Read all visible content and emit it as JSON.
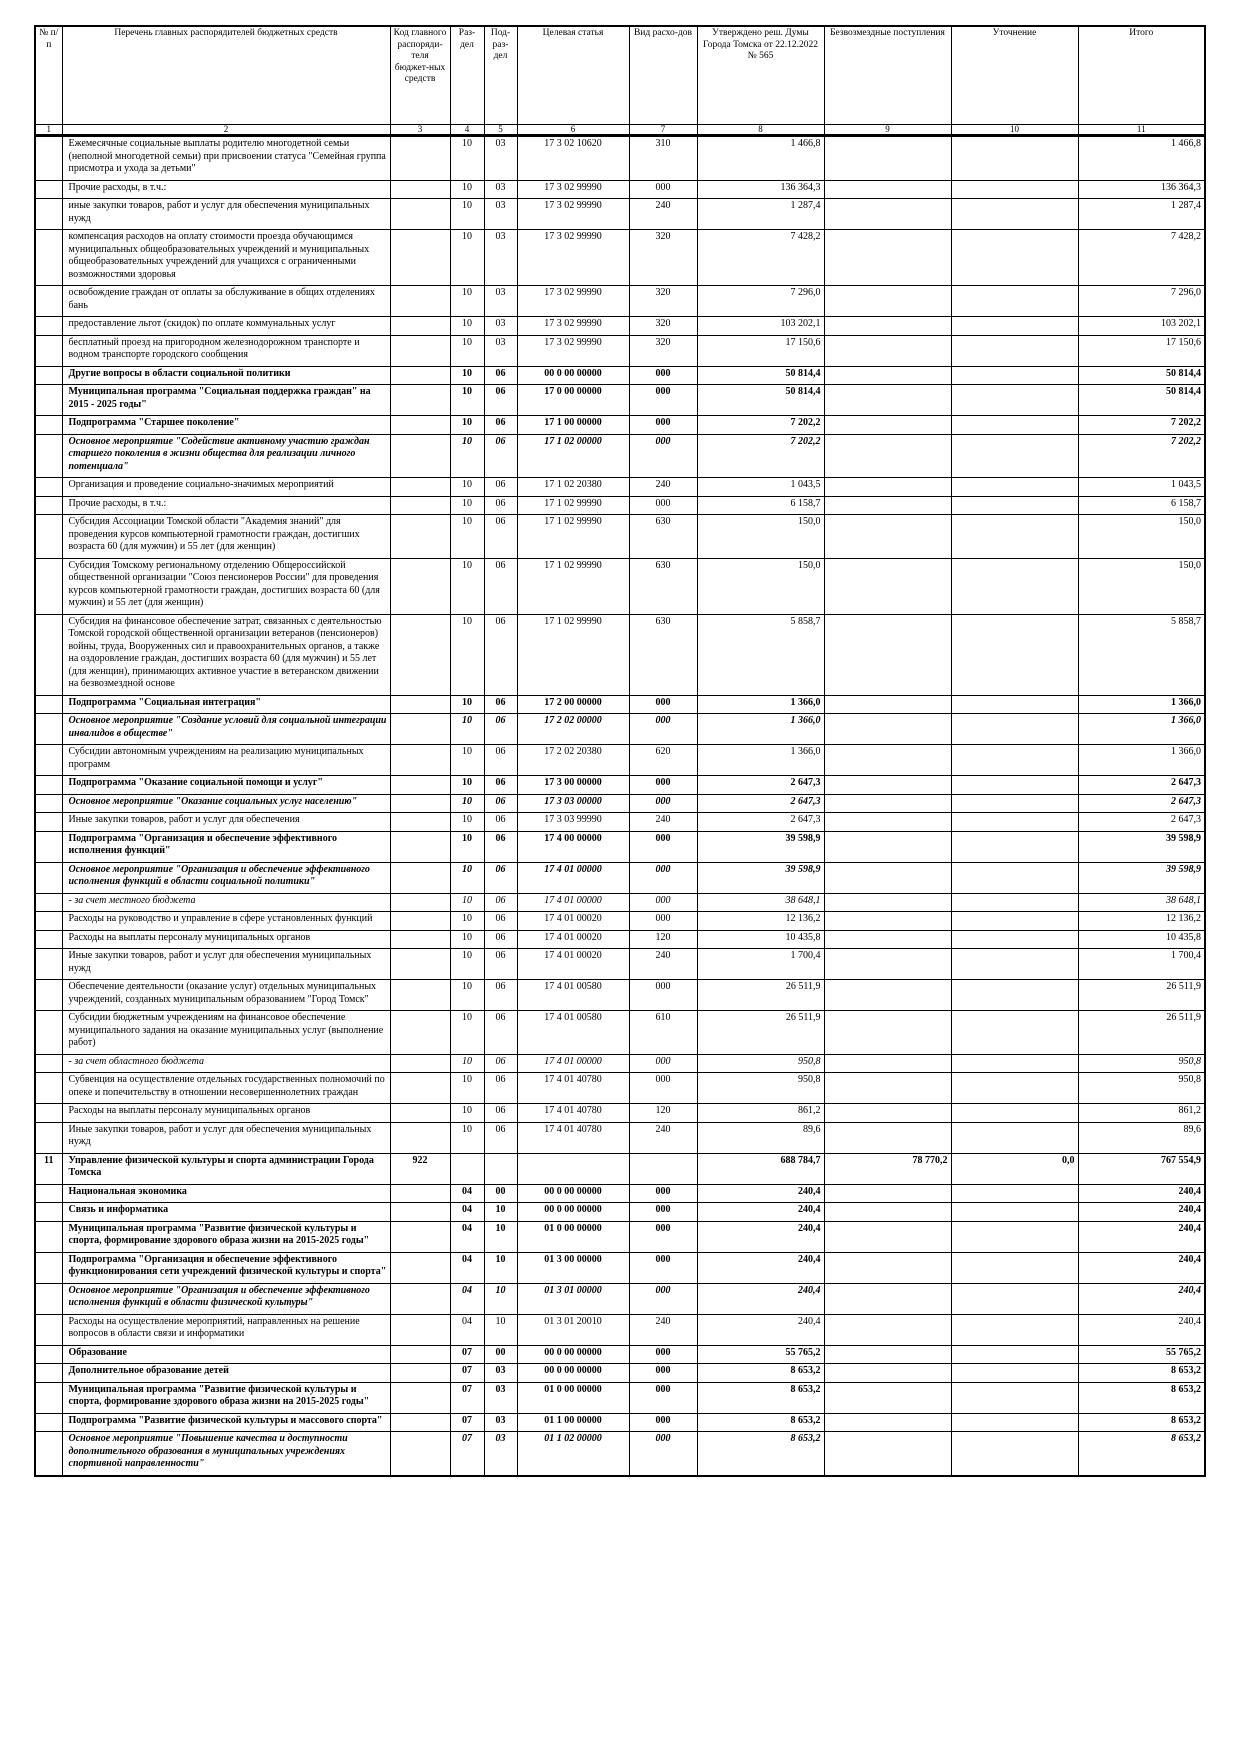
{
  "header": {
    "columns": [
      "№ п/п",
      "Перечень главных распорядителей бюджетных средств",
      "Код главного распоряди-теля бюджет-ных средств",
      "Раз-дел",
      "Под-раз-дел",
      "Целевая статья",
      "Вид расхо-дов",
      "Утверждено реш. Думы Города Томска от 22.12.2022 № 565",
      "Безвозмездные поступления",
      "Уточнение",
      "Итого"
    ],
    "numbers": [
      "1",
      "2",
      "3",
      "4",
      "5",
      "6",
      "7",
      "8",
      "9",
      "10",
      "11"
    ]
  },
  "rows": [
    {
      "kind": "normal",
      "cells": [
        null,
        "Ежемесячные социальные выплаты родителю многодетной семьи (неполной многодетной семьи) при присвоении статуса \"Семейная группа присмотра и ухода за детьми\"",
        null,
        "10",
        "03",
        "17 3 02 10620",
        "310",
        "1 466,8",
        null,
        null,
        "1 466,8"
      ]
    },
    {
      "kind": "normal",
      "cells": [
        null,
        "Прочие расходы, в т.ч.:",
        null,
        "10",
        "03",
        "17 3 02 99990",
        "000",
        "136 364,3",
        null,
        null,
        "136 364,3"
      ]
    },
    {
      "kind": "normal",
      "cells": [
        null,
        "иные закупки товаров, работ и услуг для обеспечения муниципальных нужд",
        null,
        "10",
        "03",
        "17 3 02 99990",
        "240",
        "1 287,4",
        null,
        null,
        "1 287,4"
      ]
    },
    {
      "kind": "normal",
      "cells": [
        null,
        "компенсация расходов на оплату стоимости проезда обучающимся муниципальных общеобразовательных учреждений и муниципальных общеобразовательных учреждений для учащихся с ограниченными возможностями здоровья",
        null,
        "10",
        "03",
        "17 3 02 99990",
        "320",
        "7 428,2",
        null,
        null,
        "7 428,2"
      ]
    },
    {
      "kind": "normal",
      "cells": [
        null,
        "освобождение граждан от оплаты за обслуживание в общих отделениях бань",
        null,
        "10",
        "03",
        "17 3 02 99990",
        "320",
        "7 296,0",
        null,
        null,
        "7 296,0"
      ]
    },
    {
      "kind": "normal",
      "cells": [
        null,
        "предоставление льгот (скидок) по оплате коммунальных услуг",
        null,
        "10",
        "03",
        "17 3 02 99990",
        "320",
        "103 202,1",
        null,
        null,
        "103 202,1"
      ]
    },
    {
      "kind": "normal",
      "cells": [
        null,
        "бесплатный проезд на пригородном железнодорожном транспорте и водном транспорте городского сообщения",
        null,
        "10",
        "03",
        "17 3 02 99990",
        "320",
        "17 150,6",
        null,
        null,
        "17 150,6"
      ]
    },
    {
      "kind": "section",
      "cells": [
        null,
        "Другие вопросы в области социальной политики",
        null,
        "10",
        "06",
        "00 0 00 00000",
        "000",
        "50 814,4",
        null,
        null,
        "50 814,4"
      ]
    },
    {
      "kind": "bold",
      "cells": [
        null,
        "Муниципальная программа \"Социальная поддержка граждан\" на 2015 - 2025 годы\"",
        null,
        "10",
        "06",
        "17 0 00 00000",
        "000",
        "50 814,4",
        null,
        null,
        "50 814,4"
      ]
    },
    {
      "kind": "bold",
      "cells": [
        null,
        "Подпрограмма \"Старшее поколение\"",
        null,
        "10",
        "06",
        "17 1 00 00000",
        "000",
        "7 202,2",
        null,
        null,
        "7 202,2"
      ]
    },
    {
      "kind": "bolditalic",
      "cells": [
        null,
        "Основное мероприятие \"Содействие активному участию граждан старшего поколения в жизни общества для реализации личного потенциала\"",
        null,
        "10",
        "06",
        "17 1 02 00000",
        "000",
        "7 202,2",
        null,
        null,
        "7 202,2"
      ]
    },
    {
      "kind": "normal",
      "cells": [
        null,
        "Организация и проведение социально-значимых мероприятий",
        null,
        "10",
        "06",
        "17 1 02 20380",
        "240",
        "1 043,5",
        null,
        null,
        "1 043,5"
      ]
    },
    {
      "kind": "normal",
      "cells": [
        null,
        "Прочие расходы, в т.ч.:",
        null,
        "10",
        "06",
        "17 1 02 99990",
        "000",
        "6 158,7",
        null,
        null,
        "6 158,7"
      ]
    },
    {
      "kind": "normal",
      "cells": [
        null,
        "Субсидия Ассоциации Томской области \"Академия знаний\" для проведения курсов компьютерной грамотности граждан, достигших возраста 60 (для мужчин) и 55 лет (для женщин)",
        null,
        "10",
        "06",
        "17 1 02 99990",
        "630",
        "150,0",
        null,
        null,
        "150,0"
      ]
    },
    {
      "kind": "normal",
      "cells": [
        null,
        "Субсидия Томскому региональному отделению Общероссийской общественной организации \"Союз пенсионеров России\" для проведения курсов компьютерной грамотности граждан, достигших возраста 60 (для мужчин) и 55 лет (для женщин)",
        null,
        "10",
        "06",
        "17 1 02 99990",
        "630",
        "150,0",
        null,
        null,
        "150,0"
      ]
    },
    {
      "kind": "normal",
      "cells": [
        null,
        "Субсидия на финансовое обеспечение затрат, связанных с деятельностью Томской городской общественной организации ветеранов (пенсионеров) войны, труда, Вооруженных сил и правоохранительных органов, а также на оздоровление граждан, достигших возраста 60 (для мужчин) и 55 лет (для женщин), принимающих активное участие в ветеранском движении на безвозмездной основе",
        null,
        "10",
        "06",
        "17 1 02 99990",
        "630",
        "5 858,7",
        null,
        null,
        "5 858,7"
      ]
    },
    {
      "kind": "bold",
      "cells": [
        null,
        "Подпрограмма \"Социальная интеграция\"",
        null,
        "10",
        "06",
        "17 2 00 00000",
        "000",
        "1 366,0",
        null,
        null,
        "1 366,0"
      ]
    },
    {
      "kind": "bolditalic",
      "cells": [
        null,
        "Основное мероприятие \"Создание условий для социальной интеграции инвалидов в обществе\"",
        null,
        "10",
        "06",
        "17 2 02 00000",
        "000",
        "1 366,0",
        null,
        null,
        "1 366,0"
      ]
    },
    {
      "kind": "normal",
      "cells": [
        null,
        "Субсидии автономным учреждениям на реализацию муниципальных программ",
        null,
        "10",
        "06",
        "17 2 02 20380",
        "620",
        "1 366,0",
        null,
        null,
        "1 366,0"
      ]
    },
    {
      "kind": "bold",
      "cells": [
        null,
        "Подпрограмма \"Оказание социальной помощи и услуг\"",
        null,
        "10",
        "06",
        "17 3 00 00000",
        "000",
        "2 647,3",
        null,
        null,
        "2 647,3"
      ]
    },
    {
      "kind": "bolditalic",
      "cells": [
        null,
        "Основное мероприятие \"Оказание социальных услуг населению\"",
        null,
        "10",
        "06",
        "17 3 03 00000",
        "000",
        "2 647,3",
        null,
        null,
        "2 647,3"
      ]
    },
    {
      "kind": "normal",
      "cells": [
        null,
        "Иные закупки товаров, работ и услуг для обеспечения",
        null,
        "10",
        "06",
        "17 3 03 99990",
        "240",
        "2 647,3",
        null,
        null,
        "2 647,3"
      ]
    },
    {
      "kind": "bold",
      "cells": [
        null,
        "Подпрограмма \"Организация и обеспечение эффективного исполнения функций\"",
        null,
        "10",
        "06",
        "17 4 00 00000",
        "000",
        "39 598,9",
        null,
        null,
        "39 598,9"
      ]
    },
    {
      "kind": "bolditalic",
      "cells": [
        null,
        "Основное мероприятие \"Организация и обеспечение эффективного исполнения функций в области социальной политики\"",
        null,
        "10",
        "06",
        "17 4 01 00000",
        "000",
        "39 598,9",
        null,
        null,
        "39 598,9"
      ]
    },
    {
      "kind": "italic",
      "cells": [
        null,
        "- за счет местного бюджета",
        null,
        "10",
        "06",
        "17 4 01 00000",
        "000",
        "38 648,1",
        null,
        null,
        "38 648,1"
      ]
    },
    {
      "kind": "normal",
      "cells": [
        null,
        "Расходы на руководство и управление в сфере установленных функций",
        null,
        "10",
        "06",
        "17 4 01 00020",
        "000",
        "12 136,2",
        null,
        null,
        "12 136,2"
      ]
    },
    {
      "kind": "normal",
      "cells": [
        null,
        "Расходы на выплаты персоналу муниципальных органов",
        null,
        "10",
        "06",
        "17 4 01 00020",
        "120",
        "10 435,8",
        null,
        null,
        "10 435,8"
      ]
    },
    {
      "kind": "normal",
      "cells": [
        null,
        "Иные закупки товаров, работ и услуг для обеспечения муниципальных нужд",
        null,
        "10",
        "06",
        "17 4 01 00020",
        "240",
        "1 700,4",
        null,
        null,
        "1 700,4"
      ]
    },
    {
      "kind": "normal",
      "cells": [
        null,
        "Обеспечение деятельности (оказание услуг) отдельных муниципальных учреждений, созданных муниципальным образованием \"Город Томск\"",
        null,
        "10",
        "06",
        "17 4 01 00580",
        "000",
        "26 511,9",
        null,
        null,
        "26 511,9"
      ]
    },
    {
      "kind": "normal",
      "cells": [
        null,
        "Субсидии бюджетным учреждениям на финансовое обеспечение муниципального задания на оказание муниципальных услуг (выполнение работ)",
        null,
        "10",
        "06",
        "17 4 01 00580",
        "610",
        "26 511,9",
        null,
        null,
        "26 511,9"
      ]
    },
    {
      "kind": "italic",
      "cells": [
        null,
        "- за счет областного бюджета",
        null,
        "10",
        "06",
        "17 4 01 00000",
        "000",
        "950,8",
        null,
        null,
        "950,8"
      ]
    },
    {
      "kind": "normal",
      "cells": [
        null,
        "Субвенция на осуществление отдельных государственных полномочий по опеке и попечительству в отношении несовершеннолетних граждан",
        null,
        "10",
        "06",
        "17 4 01 40780",
        "000",
        "950,8",
        null,
        null,
        "950,8"
      ]
    },
    {
      "kind": "normal",
      "cells": [
        null,
        "Расходы на выплаты персоналу муниципальных органов",
        null,
        "10",
        "06",
        "17 4 01 40780",
        "120",
        "861,2",
        null,
        null,
        "861,2"
      ]
    },
    {
      "kind": "normal",
      "cells": [
        null,
        "Иные закупки товаров, работ и услуг для обеспечения муниципальных нужд",
        null,
        "10",
        "06",
        "17 4 01 40780",
        "240",
        "89,6",
        null,
        null,
        "89,6"
      ]
    },
    {
      "kind": "main",
      "cells": [
        "11",
        "Управление физической культуры и спорта администрации Города Томска",
        "922",
        null,
        null,
        null,
        null,
        "688 784,7",
        "78 770,2",
        "0,0",
        "767 554,9"
      ]
    },
    {
      "kind": "sectionbig",
      "cells": [
        null,
        "Национальная экономика",
        null,
        "04",
        "00",
        "00 0 00 00000",
        "000",
        "240,4",
        null,
        null,
        "240,4"
      ]
    },
    {
      "kind": "section",
      "cells": [
        null,
        "Связь и информатика",
        null,
        "04",
        "10",
        "00 0 00 00000",
        "000",
        "240,4",
        null,
        null,
        "240,4"
      ]
    },
    {
      "kind": "bold",
      "cells": [
        null,
        "Муниципальная программа \"Развитие физической культуры и спорта, формирование здорового образа жизни на 2015-2025 годы\"",
        null,
        "04",
        "10",
        "01 0 00 00000",
        "000",
        "240,4",
        null,
        null,
        "240,4"
      ]
    },
    {
      "kind": "bold",
      "cells": [
        null,
        "Подпрограмма \"Организация и обеспечение эффективного функционирования сети учреждений физической культуры и спорта\"",
        null,
        "04",
        "10",
        "01 3 00 00000",
        "000",
        "240,4",
        null,
        null,
        "240,4"
      ]
    },
    {
      "kind": "bolditalic",
      "cells": [
        null,
        "Основное мероприятие \"Организация и обеспечение эффективного исполнения функций в области физической культуры\"",
        null,
        "04",
        "10",
        "01 3 01 00000",
        "000",
        "240,4",
        null,
        null,
        "240,4"
      ]
    },
    {
      "kind": "normal",
      "cells": [
        null,
        "Расходы на осуществление мероприятий, направленных на решение вопросов в области связи и информатики",
        null,
        "04",
        "10",
        "01 3 01 20010",
        "240",
        "240,4",
        null,
        null,
        "240,4"
      ]
    },
    {
      "kind": "sectionbig",
      "cells": [
        null,
        "Образование",
        null,
        "07",
        "00",
        "00 0 00 00000",
        "000",
        "55 765,2",
        null,
        null,
        "55 765,2"
      ]
    },
    {
      "kind": "section",
      "cells": [
        null,
        "Дополнительное образование детей",
        null,
        "07",
        "03",
        "00 0 00 00000",
        "000",
        "8 653,2",
        null,
        null,
        "8 653,2"
      ]
    },
    {
      "kind": "bold",
      "cells": [
        null,
        "Муниципальная программа \"Развитие физической культуры и спорта, формирование здорового образа жизни на 2015-2025 годы\"",
        null,
        "07",
        "03",
        "01 0 00 00000",
        "000",
        "8 653,2",
        null,
        null,
        "8 653,2"
      ]
    },
    {
      "kind": "bold",
      "cells": [
        null,
        "Подпрограмма \"Развитие физической культуры и массового спорта\"",
        null,
        "07",
        "03",
        "01 1 00 00000",
        "000",
        "8 653,2",
        null,
        null,
        "8 653,2"
      ]
    },
    {
      "kind": "bolditalic",
      "cells": [
        null,
        "Основное мероприятие \"Повышение качества и доступности дополнительного образования в муниципальных учреждениях спортивной направленности\"",
        null,
        "07",
        "03",
        "01 1 02 00000",
        "000",
        "8 653,2",
        null,
        null,
        "8 653,2"
      ]
    }
  ]
}
